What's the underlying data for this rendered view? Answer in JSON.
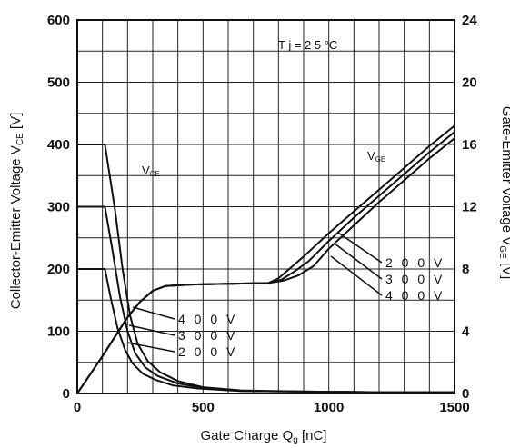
{
  "chart_data": {
    "type": "line",
    "title": "",
    "xlabel": "Gate Charge Q",
    "xlabel_sub": "g",
    "xlabel_unit": " [nC]",
    "ylabel_left": "Collector-Emitter Voltage V",
    "ylabel_left_sub": "CE",
    "ylabel_left_unit": " [V]",
    "ylabel_right": "Gate-Emitter Voltage V",
    "ylabel_right_sub": "GE",
    "ylabel_right_unit": " [V]",
    "xlim": [
      0,
      1500
    ],
    "ylim_left": [
      0,
      600
    ],
    "ylim_right": [
      0,
      24
    ],
    "x_ticks": [
      "0",
      "500",
      "1000",
      "1500"
    ],
    "x_tick_values": [
      0,
      500,
      1000,
      1500
    ],
    "y_left_ticks": [
      "0",
      "100",
      "200",
      "300",
      "400",
      "500",
      "600"
    ],
    "y_left_tick_values": [
      0,
      100,
      200,
      300,
      400,
      500,
      600
    ],
    "y_right_ticks": [
      "0",
      "4",
      "8",
      "12",
      "16",
      "20",
      "24"
    ],
    "y_right_tick_values": [
      0,
      4,
      8,
      12,
      16,
      20,
      24
    ],
    "grid": true,
    "grid_x_step": 100,
    "grid_y_step": 50,
    "condition_label": "T j = 2 5 °C",
    "vce_label": "V",
    "vce_label_sub": "CE",
    "vge_label": "V",
    "vge_label_sub": "GE",
    "series": [
      {
        "name": "",
        "axis": "left",
        "group": "VCE",
        "vce_label": "4 0 0 V",
        "x": [
          0,
          110,
          150,
          180,
          210,
          240,
          280,
          330,
          400,
          500,
          650,
          900,
          1200,
          1500
        ],
        "y": [
          400,
          400,
          295,
          200,
          125,
          80,
          52,
          34,
          20,
          10,
          5,
          3,
          2,
          2
        ]
      },
      {
        "name": "",
        "axis": "left",
        "group": "VCE",
        "vce_label": "3 0 0 V",
        "x": [
          0,
          110,
          140,
          170,
          200,
          230,
          270,
          320,
          400,
          500,
          650,
          900,
          1200,
          1500
        ],
        "y": [
          300,
          300,
          230,
          155,
          100,
          65,
          42,
          28,
          16,
          9,
          4,
          3,
          2,
          2
        ]
      },
      {
        "name": "",
        "axis": "left",
        "group": "VCE",
        "vce_label": "2 0 0 V",
        "x": [
          0,
          110,
          135,
          160,
          190,
          220,
          260,
          310,
          380,
          480,
          650,
          900,
          1200,
          1500
        ],
        "y": [
          200,
          200,
          150,
          105,
          70,
          48,
          32,
          22,
          13,
          8,
          4,
          3,
          2,
          2
        ]
      },
      {
        "name": "",
        "axis": "right",
        "group": "VGE",
        "vge_label": "2 0 0 V",
        "x": [
          0,
          100,
          200,
          250,
          300,
          350,
          450,
          600,
          760,
          800,
          850,
          900,
          1000,
          1100,
          1200,
          1300,
          1400,
          1500
        ],
        "y": [
          0,
          2.4,
          4.9,
          5.9,
          6.6,
          6.9,
          7.0,
          7.05,
          7.1,
          7.4,
          8.1,
          8.8,
          10.3,
          11.7,
          13.1,
          14.5,
          15.9,
          17.2
        ]
      },
      {
        "name": "",
        "axis": "right",
        "group": "VGE",
        "vge_label": "3 0 0 V",
        "x": [
          0,
          100,
          200,
          250,
          300,
          350,
          450,
          600,
          760,
          810,
          860,
          920,
          1000,
          1100,
          1200,
          1300,
          1400,
          1500
        ],
        "y": [
          0,
          2.4,
          4.9,
          5.9,
          6.6,
          6.9,
          7.0,
          7.05,
          7.1,
          7.3,
          7.8,
          8.5,
          9.8,
          11.3,
          12.7,
          14.1,
          15.5,
          16.8
        ]
      },
      {
        "name": "",
        "axis": "right",
        "group": "VGE",
        "vge_label": "4 0 0 V",
        "x": [
          0,
          100,
          200,
          250,
          300,
          350,
          450,
          600,
          760,
          820,
          880,
          940,
          1000,
          1100,
          1200,
          1300,
          1400,
          1500
        ],
        "y": [
          0,
          2.4,
          4.9,
          5.9,
          6.6,
          6.9,
          7.0,
          7.05,
          7.1,
          7.25,
          7.6,
          8.2,
          9.3,
          10.8,
          12.3,
          13.7,
          15.1,
          16.4
        ]
      }
    ],
    "vce_annotations": [
      "4 0 0 V",
      "3 0 0 V",
      "2 0 0 V"
    ],
    "vge_annotations": [
      "2 0 0 V",
      "3 0 0 V",
      "4 0 0 V"
    ]
  }
}
